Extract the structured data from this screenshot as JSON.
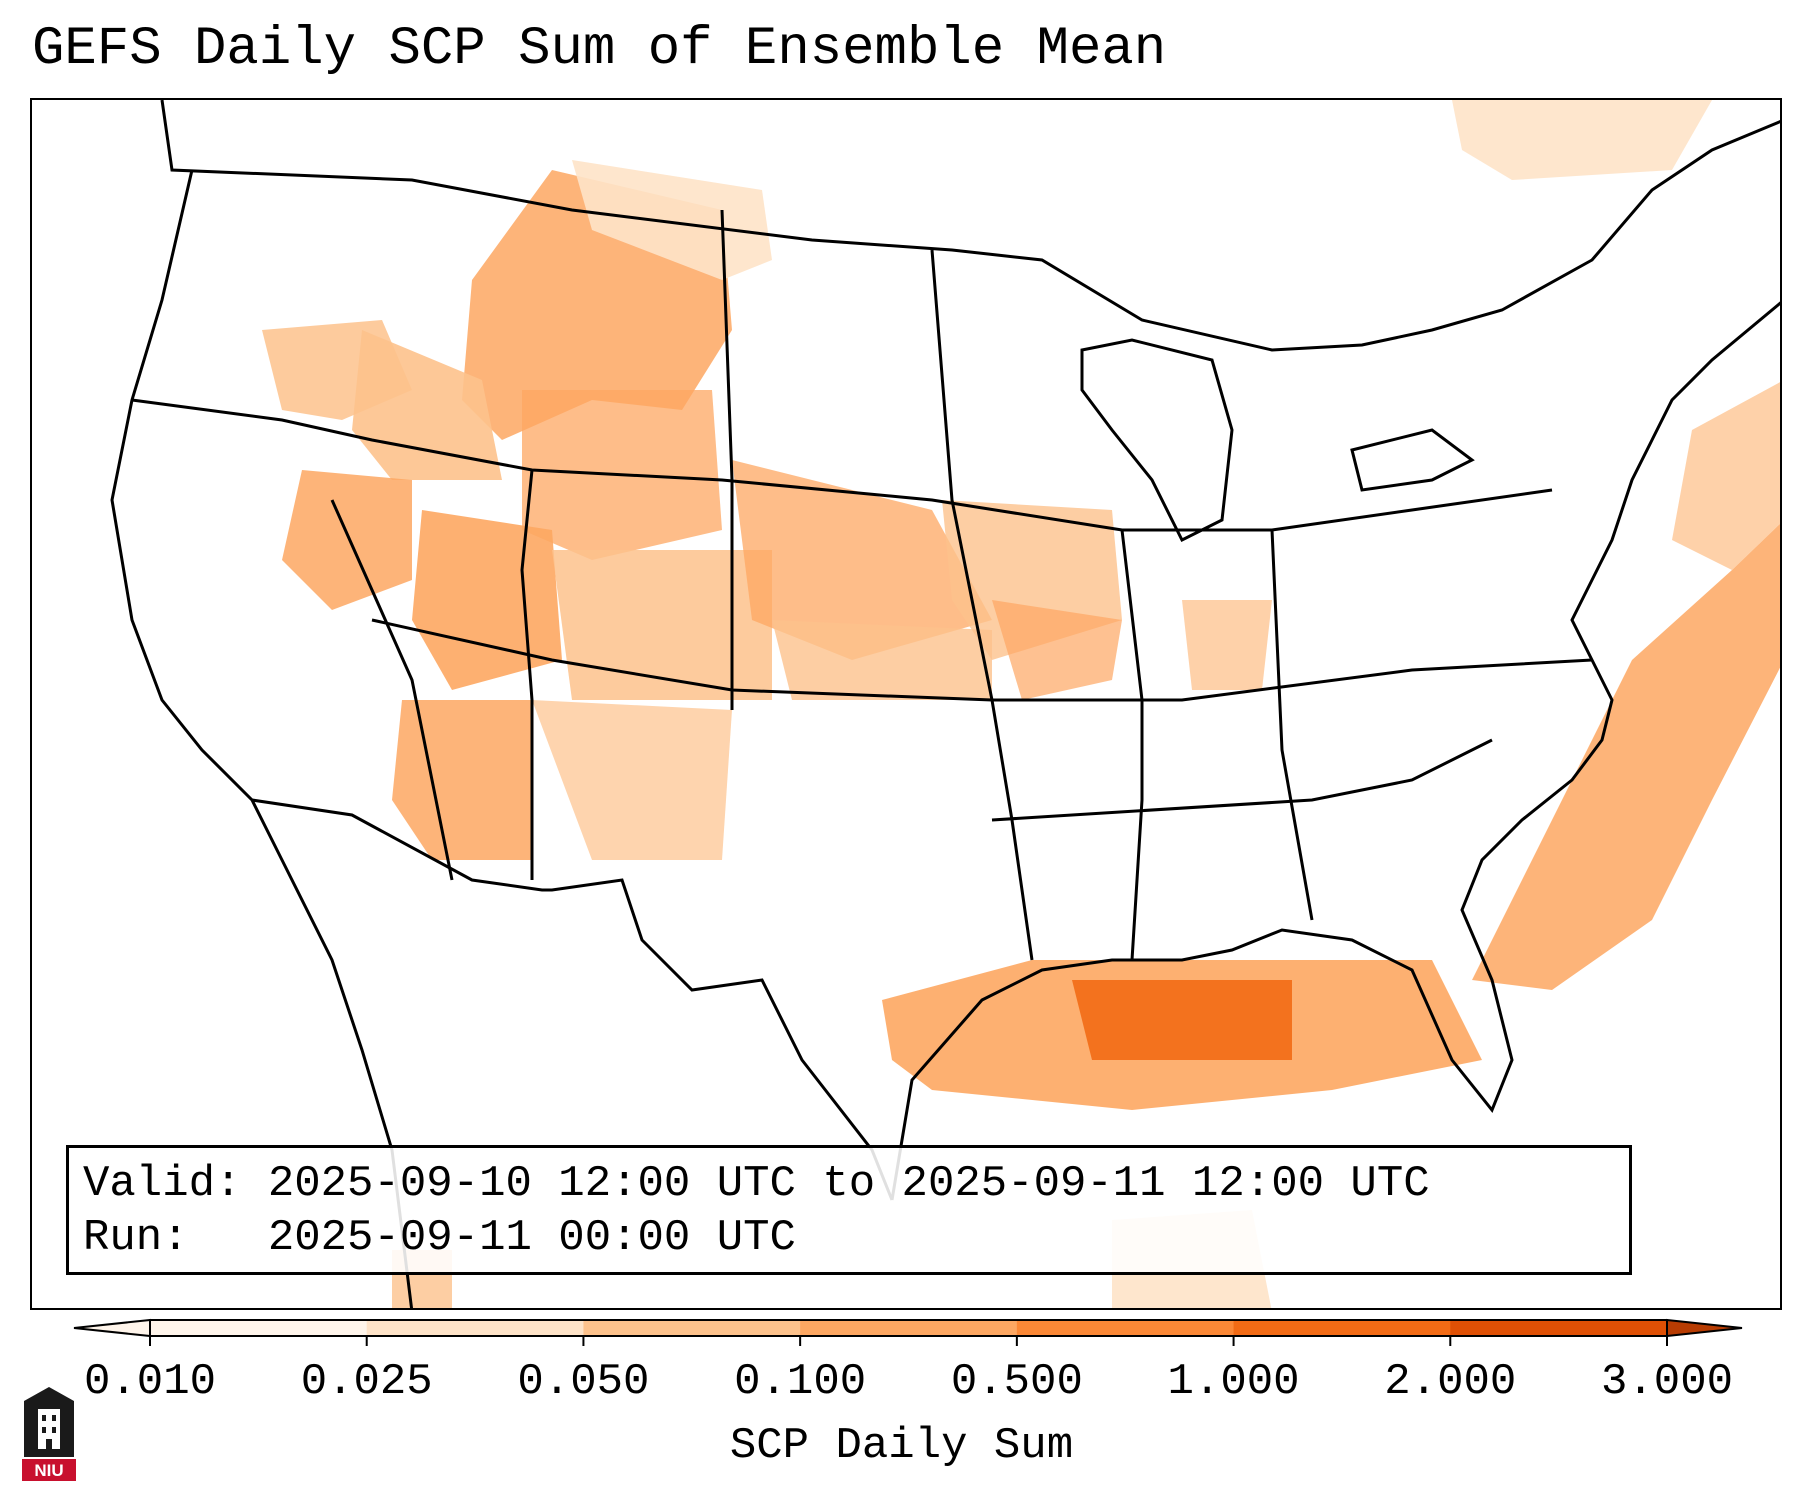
{
  "title": "GEFS Daily SCP Sum of Ensemble Mean",
  "info": {
    "valid_label": "Valid:",
    "valid_text": "2025-09-10 12:00 UTC to 2025-09-11 12:00 UTC",
    "run_label": "Run:",
    "run_text": "2025-09-11 00:00 UTC"
  },
  "colorbar": {
    "label": "SCP Daily Sum",
    "ticks": [
      "0.010",
      "0.025",
      "0.050",
      "0.100",
      "0.500",
      "1.000",
      "2.000",
      "3.000"
    ],
    "colors": [
      "#fff5eb",
      "#fee3c8",
      "#fdc28c",
      "#fda762",
      "#fb8836",
      "#f26b15",
      "#df5005",
      "#b83c02"
    ],
    "extend": "both"
  },
  "logo": {
    "text": "NIU",
    "color": "#c8102e"
  },
  "colors": {
    "line": "#000000",
    "shade_light": "#fdc28c",
    "shade_mid": "#fda762",
    "shade_strong": "#f26b15"
  }
}
